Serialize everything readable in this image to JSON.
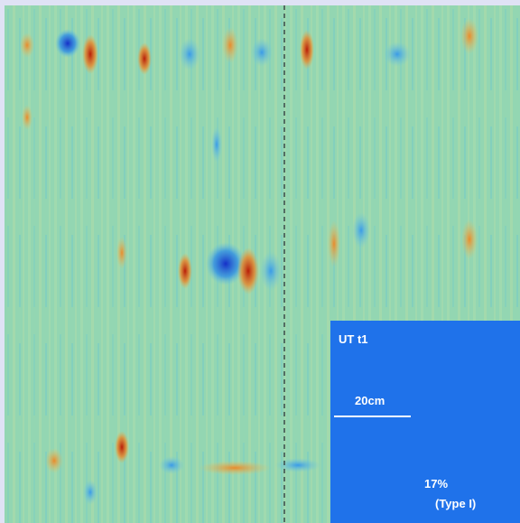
{
  "inset": {
    "title": "UT t1",
    "scale_label": "20cm",
    "percent": "17%",
    "type": "(Type I)"
  }
}
